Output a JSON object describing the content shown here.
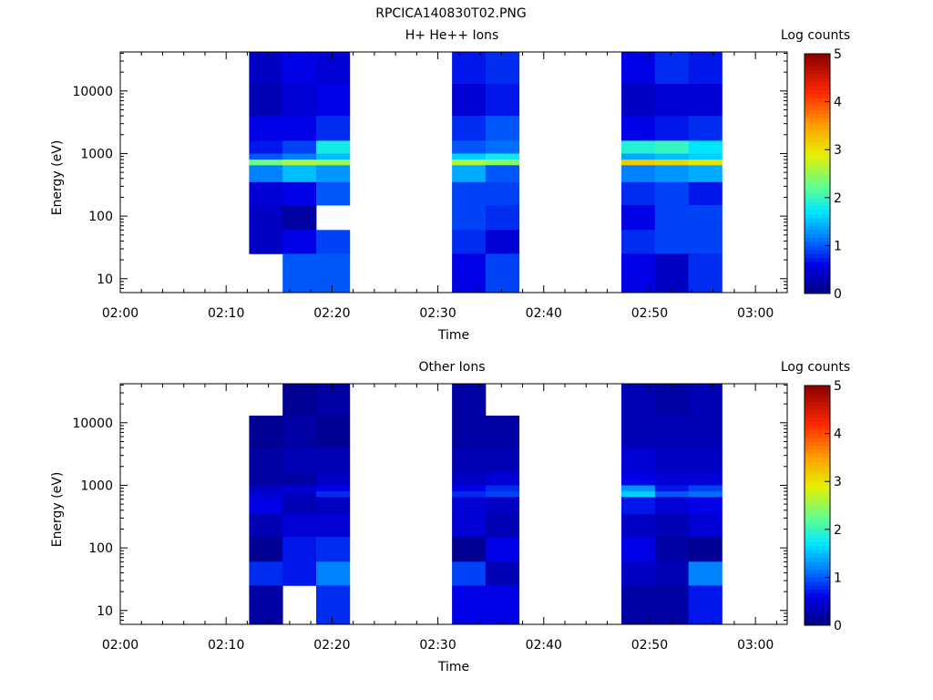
{
  "figure": {
    "title": "RPCICA140830T02.PNG"
  },
  "chart_data": [
    {
      "type": "heatmap",
      "title": "H+ He++ Ions",
      "xlabel": "Time",
      "ylabel": "Energy (eV)",
      "x_ticks": [
        "02:00",
        "02:10",
        "02:20",
        "02:30",
        "02:40",
        "02:50",
        "03:00"
      ],
      "xlim": [
        "02:00",
        "03:03"
      ],
      "y_scale": "log",
      "y_ticks": [
        10,
        100,
        1000,
        10000
      ],
      "ylim": [
        6,
        42000
      ],
      "colorbar": {
        "label": "Log counts",
        "range": [
          0,
          5
        ],
        "ticks": [
          0,
          1,
          2,
          3,
          4,
          5
        ]
      },
      "time_bins": [
        {
          "start": "02:12:10",
          "end": "02:15:20"
        },
        {
          "start": "02:15:20",
          "end": "02:18:30"
        },
        {
          "start": "02:18:30",
          "end": "02:21:40"
        },
        {
          "start": "02:31:20",
          "end": "02:34:30"
        },
        {
          "start": "02:34:30",
          "end": "02:37:40"
        },
        {
          "start": "02:47:20",
          "end": "02:50:30"
        },
        {
          "start": "02:50:30",
          "end": "02:53:40"
        },
        {
          "start": "02:53:40",
          "end": "02:56:50"
        }
      ],
      "energy_bins_eV": [
        42000,
        13000,
        4000,
        1600,
        1000,
        800,
        650,
        350,
        150,
        60,
        25,
        6
      ],
      "values_log_counts": [
        [
          0.4,
          0.3,
          0.6,
          0.7,
          1.0,
          2.3,
          1.2,
          0.5,
          0.4,
          0.4,
          null
        ],
        [
          0.6,
          0.5,
          0.6,
          0.9,
          1.2,
          2.6,
          1.5,
          0.6,
          0.2,
          0.6,
          1.0
        ],
        [
          0.5,
          0.6,
          0.8,
          1.8,
          1.5,
          2.5,
          1.3,
          1.0,
          null,
          0.9,
          1.0
        ],
        [
          0.7,
          0.5,
          0.8,
          1.0,
          1.6,
          2.6,
          1.4,
          0.9,
          0.9,
          0.8,
          0.6
        ],
        [
          0.8,
          0.7,
          1.0,
          1.1,
          1.8,
          2.4,
          1.0,
          0.9,
          0.8,
          0.5,
          0.9
        ],
        [
          0.6,
          0.4,
          0.6,
          1.9,
          1.4,
          3.2,
          1.2,
          0.8,
          0.6,
          0.8,
          0.6
        ],
        [
          0.8,
          0.5,
          0.7,
          2.0,
          1.5,
          3.1,
          1.3,
          0.9,
          0.9,
          0.9,
          0.4
        ],
        [
          0.7,
          0.5,
          0.8,
          1.7,
          1.6,
          3.0,
          1.4,
          0.7,
          0.9,
          0.9,
          0.8
        ]
      ]
    },
    {
      "type": "heatmap",
      "title": "Other Ions",
      "xlabel": "Time",
      "ylabel": "Energy (eV)",
      "x_ticks": [
        "02:00",
        "02:10",
        "02:20",
        "02:30",
        "02:40",
        "02:50",
        "03:00"
      ],
      "xlim": [
        "02:00",
        "03:03"
      ],
      "y_scale": "log",
      "y_ticks": [
        10,
        100,
        1000,
        10000
      ],
      "ylim": [
        6,
        42000
      ],
      "colorbar": {
        "label": "Log counts",
        "range": [
          0,
          5
        ],
        "ticks": [
          0,
          1,
          2,
          3,
          4,
          5
        ]
      },
      "time_bins": [
        {
          "start": "02:12:10",
          "end": "02:15:20"
        },
        {
          "start": "02:15:20",
          "end": "02:18:30"
        },
        {
          "start": "02:18:30",
          "end": "02:21:40"
        },
        {
          "start": "02:31:20",
          "end": "02:34:30"
        },
        {
          "start": "02:34:30",
          "end": "02:37:40"
        },
        {
          "start": "02:47:20",
          "end": "02:50:30"
        },
        {
          "start": "02:50:30",
          "end": "02:53:40"
        },
        {
          "start": "02:53:40",
          "end": "02:56:50"
        }
      ],
      "energy_bins_eV": [
        42000,
        13000,
        4000,
        1600,
        1000,
        800,
        650,
        350,
        150,
        60,
        25,
        6
      ],
      "values_log_counts": [
        [
          null,
          0.1,
          0.2,
          0.2,
          0.4,
          0.5,
          0.6,
          0.3,
          0.1,
          0.8,
          0.2
        ],
        [
          0.1,
          0.2,
          0.3,
          0.2,
          0.5,
          0.4,
          0.3,
          0.5,
          0.7,
          0.7,
          null
        ],
        [
          0.2,
          0.1,
          0.3,
          0.4,
          0.6,
          0.8,
          0.4,
          0.5,
          0.8,
          1.2,
          0.8
        ],
        [
          0.2,
          0.2,
          0.3,
          0.4,
          0.6,
          0.8,
          0.5,
          0.5,
          0.1,
          0.9,
          0.6
        ],
        [
          null,
          0.2,
          0.3,
          0.5,
          0.8,
          0.9,
          0.4,
          0.3,
          0.6,
          0.3,
          0.6
        ],
        [
          0.3,
          0.3,
          0.5,
          0.6,
          1.3,
          1.6,
          0.7,
          0.4,
          0.6,
          0.4,
          0.2
        ],
        [
          0.2,
          0.3,
          0.4,
          0.5,
          0.7,
          1.0,
          0.5,
          0.3,
          0.2,
          0.3,
          0.2
        ],
        [
          0.3,
          0.3,
          0.4,
          0.5,
          0.9,
          1.1,
          0.6,
          0.5,
          0.1,
          1.2,
          0.7
        ]
      ]
    }
  ]
}
